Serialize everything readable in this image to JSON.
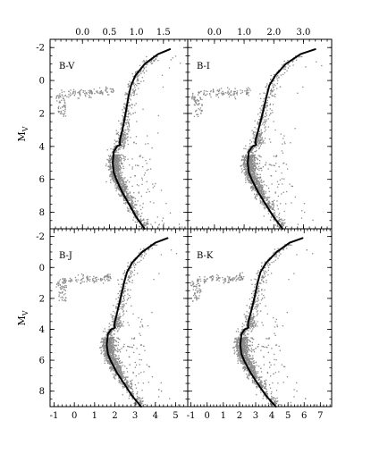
{
  "chart_data": [
    {
      "type": "scatter",
      "panel_label": "B-V",
      "ylabel": "M",
      "ylabel_sub": "V",
      "xlim": [
        -0.6,
        1.95
      ],
      "ylim": [
        9,
        -2.5
      ],
      "x_ticks": [
        "0.0",
        "0.5",
        "1.0",
        "1.5"
      ],
      "x_tick_values": [
        0.0,
        0.5,
        1.0,
        1.5
      ],
      "y_ticks": [
        "-2",
        "0",
        "2",
        "4",
        "6",
        "8"
      ],
      "y_tick_values": [
        -2,
        0,
        2,
        4,
        6,
        8
      ],
      "series": [
        {
          "role": "isochrone",
          "x": [
            1.62,
            1.4,
            1.15,
            0.98,
            0.9,
            0.85,
            0.8,
            0.74,
            0.7,
            0.69,
            0.7,
            0.64,
            0.58,
            0.56,
            0.58,
            0.64,
            0.74,
            0.86,
            1.0,
            1.15
          ],
          "y": [
            -1.9,
            -1.6,
            -1.0,
            -0.3,
            0.3,
            1.0,
            2.0,
            3.0,
            3.5,
            3.75,
            3.9,
            4.0,
            4.3,
            5.0,
            5.6,
            6.1,
            6.8,
            7.5,
            8.3,
            9.0
          ]
        },
        {
          "role": "horizontal_branch",
          "x": [
            -0.45,
            -0.35,
            -0.25,
            -0.15,
            -0.05,
            0.05,
            0.15,
            0.25,
            0.35,
            0.45,
            0.55
          ],
          "y": [
            1.0,
            0.85,
            0.8,
            0.75,
            0.75,
            0.75,
            0.75,
            0.75,
            0.7,
            0.65,
            0.6
          ]
        }
      ]
    },
    {
      "type": "scatter",
      "panel_label": "B-I",
      "xlim": [
        -0.9,
        3.95
      ],
      "ylim": [
        9,
        -2.5
      ],
      "x_ticks": [
        "0.0",
        "1.0",
        "2.0",
        "3.0"
      ],
      "x_tick_values": [
        0.0,
        1.0,
        2.0,
        3.0
      ],
      "y_ticks": [
        "-2",
        "0",
        "2",
        "4",
        "6",
        "8"
      ],
      "y_tick_values": [
        -2,
        0,
        2,
        4,
        6,
        8
      ],
      "series": [
        {
          "role": "isochrone",
          "x": [
            3.4,
            2.9,
            2.4,
            2.05,
            1.85,
            1.75,
            1.62,
            1.48,
            1.4,
            1.38,
            1.4,
            1.28,
            1.16,
            1.12,
            1.16,
            1.28,
            1.48,
            1.72,
            2.0,
            2.3
          ],
          "y": [
            -1.9,
            -1.6,
            -1.0,
            -0.3,
            0.3,
            1.0,
            2.0,
            3.0,
            3.5,
            3.75,
            3.9,
            4.0,
            4.3,
            5.0,
            5.6,
            6.1,
            6.8,
            7.5,
            8.3,
            9.0
          ]
        },
        {
          "role": "horizontal_branch",
          "x": [
            -0.7,
            -0.5,
            -0.3,
            -0.1,
            0.1,
            0.3,
            0.5,
            0.7,
            0.9,
            1.05,
            1.15
          ],
          "y": [
            1.0,
            0.85,
            0.8,
            0.75,
            0.75,
            0.75,
            0.75,
            0.75,
            0.7,
            0.65,
            0.6
          ]
        }
      ]
    },
    {
      "type": "scatter",
      "panel_label": "B-J",
      "ylabel": "M",
      "ylabel_sub": "V",
      "xlim": [
        -1.2,
        5.6
      ],
      "ylim": [
        9,
        -2.5
      ],
      "x_ticks": [
        "-1",
        "0",
        "1",
        "2",
        "3",
        "4",
        "5"
      ],
      "x_tick_values": [
        -1,
        0,
        1,
        2,
        3,
        4,
        5
      ],
      "y_ticks": [
        "-2",
        "0",
        "2",
        "4",
        "6",
        "8"
      ],
      "y_tick_values": [
        -2,
        0,
        2,
        4,
        6,
        8
      ],
      "series": [
        {
          "role": "isochrone",
          "x": [
            4.6,
            4.0,
            3.35,
            2.85,
            2.6,
            2.45,
            2.28,
            2.1,
            2.0,
            1.98,
            2.0,
            1.82,
            1.66,
            1.6,
            1.66,
            1.82,
            2.1,
            2.45,
            2.85,
            3.3
          ],
          "y": [
            -1.9,
            -1.6,
            -1.0,
            -0.3,
            0.3,
            1.0,
            2.0,
            3.0,
            3.5,
            3.75,
            3.9,
            4.0,
            4.3,
            5.0,
            5.6,
            6.1,
            6.8,
            7.5,
            8.3,
            9.0
          ]
        },
        {
          "role": "horizontal_branch",
          "x": [
            -0.8,
            -0.5,
            -0.2,
            0.1,
            0.4,
            0.7,
            1.0,
            1.25,
            1.45,
            1.6,
            1.7
          ],
          "y": [
            1.0,
            0.85,
            0.8,
            0.75,
            0.75,
            0.75,
            0.75,
            0.75,
            0.7,
            0.65,
            0.6
          ]
        }
      ]
    },
    {
      "type": "scatter",
      "panel_label": "B-K",
      "xlim": [
        -1.2,
        7.7
      ],
      "ylim": [
        9,
        -2.5
      ],
      "x_ticks": [
        "-1",
        "0",
        "1",
        "2",
        "3",
        "4",
        "5",
        "6",
        "7"
      ],
      "x_tick_values": [
        -1,
        0,
        1,
        2,
        3,
        4,
        5,
        6,
        7
      ],
      "y_ticks": [
        "-2",
        "0",
        "2",
        "4",
        "6",
        "8"
      ],
      "y_tick_values": [
        -2,
        0,
        2,
        4,
        6,
        8
      ],
      "series": [
        {
          "role": "isochrone",
          "x": [
            5.9,
            5.1,
            4.3,
            3.65,
            3.3,
            3.12,
            2.92,
            2.68,
            2.55,
            2.52,
            2.55,
            2.32,
            2.12,
            2.05,
            2.12,
            2.32,
            2.68,
            3.12,
            3.65,
            4.25
          ],
          "y": [
            -1.9,
            -1.6,
            -1.0,
            -0.3,
            0.3,
            1.0,
            2.0,
            3.0,
            3.5,
            3.75,
            3.9,
            4.0,
            4.3,
            5.0,
            5.6,
            6.1,
            6.8,
            7.5,
            8.3,
            9.0
          ]
        },
        {
          "role": "horizontal_branch",
          "x": [
            -0.9,
            -0.5,
            -0.1,
            0.3,
            0.7,
            1.05,
            1.4,
            1.7,
            1.95,
            2.1,
            2.2
          ],
          "y": [
            1.0,
            0.85,
            0.8,
            0.75,
            0.75,
            0.75,
            0.75,
            0.75,
            0.7,
            0.65,
            0.6
          ]
        }
      ]
    }
  ]
}
